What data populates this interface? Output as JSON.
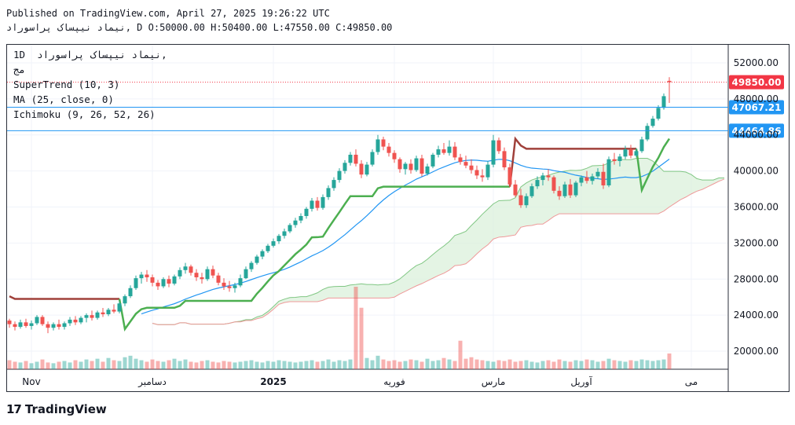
{
  "header": {
    "published": "Published on TradingView.com, April 27, 2025 19:26:22 UTC",
    "symbol_line": "نیماد نیپساک پراسوراد, D",
    "ohlc": {
      "o_label": "O",
      "o": "50000.00",
      "h_label": "H",
      "h": "50400.00",
      "l_label": "L",
      "l": "47550.00",
      "c_label": "C",
      "c": "49850.00"
    }
  },
  "legend": {
    "interval_symbol": "1D  نیماد نیپساک پراسوراد,",
    "exchange": "مج",
    "supertrend": "SuperTrend (10, 3)",
    "ma": "MA (25, close, 0)",
    "ichimoku": "Ichimoku (9, 26, 52, 26)"
  },
  "footer": {
    "brand": "TradingView",
    "logo_mark": "17"
  },
  "colors": {
    "up": "#26a69a",
    "down": "#ef5350",
    "supertrend_up": "#4caf50",
    "supertrend_down": "#a0403a",
    "ma": "#2196f3",
    "cloud_fill": "#d9efd9",
    "cloud_up": "#81c784",
    "cloud_down": "#ef9a9a",
    "price_label": "#f23645",
    "level_label": "#2196f3"
  },
  "chart_data": {
    "type": "candlestick",
    "x_tick_labels": [
      "Nov",
      "دسامبر",
      "2025",
      "فوریه",
      "مارس",
      "آوریل",
      "می"
    ],
    "y_tick_labels": [
      "52000.00",
      "48000.00",
      "44000.00",
      "40000.00",
      "36000.00",
      "32000.00",
      "28000.00",
      "24000.00",
      "20000.00"
    ],
    "y_range": [
      18000,
      54000
    ],
    "price_labels": [
      {
        "value": 49850,
        "text": "49850.00",
        "kind": "last"
      },
      {
        "value": 47067.21,
        "text": "47067.21",
        "kind": "level"
      },
      {
        "value": 44464.86,
        "text": "44464.86",
        "kind": "level"
      }
    ],
    "candles": [
      [
        23400,
        23600,
        22600,
        23000
      ],
      [
        23000,
        23300,
        22300,
        22700
      ],
      [
        22700,
        23500,
        22500,
        23200
      ],
      [
        23200,
        23600,
        22600,
        22800
      ],
      [
        22800,
        23400,
        22400,
        23100
      ],
      [
        23100,
        24000,
        22900,
        23800
      ],
      [
        23800,
        24000,
        22800,
        23000
      ],
      [
        23000,
        23300,
        22000,
        22600
      ],
      [
        22600,
        23200,
        22300,
        23000
      ],
      [
        23000,
        23500,
        22400,
        22700
      ],
      [
        22700,
        23300,
        22400,
        23100
      ],
      [
        23100,
        23800,
        22800,
        23500
      ],
      [
        23500,
        23900,
        22900,
        23200
      ],
      [
        23200,
        23900,
        23000,
        23700
      ],
      [
        23700,
        24200,
        23200,
        24000
      ],
      [
        24000,
        24500,
        23400,
        23700
      ],
      [
        23700,
        24500,
        23500,
        24300
      ],
      [
        24300,
        24800,
        23800,
        24100
      ],
      [
        24100,
        24800,
        23900,
        24600
      ],
      [
        24600,
        25200,
        24200,
        24400
      ],
      [
        24400,
        25500,
        24200,
        25300
      ],
      [
        25300,
        26300,
        25000,
        26100
      ],
      [
        26100,
        27300,
        25900,
        27000
      ],
      [
        27000,
        28400,
        26800,
        28100
      ],
      [
        28100,
        28800,
        27500,
        28500
      ],
      [
        28500,
        29000,
        27700,
        28200
      ],
      [
        28200,
        28500,
        27200,
        27600
      ],
      [
        27600,
        27900,
        26800,
        27200
      ],
      [
        27200,
        28200,
        27000,
        28000
      ],
      [
        28000,
        28400,
        27100,
        27500
      ],
      [
        27500,
        28500,
        27300,
        28300
      ],
      [
        28300,
        29300,
        28000,
        29000
      ],
      [
        29000,
        29800,
        28600,
        29400
      ],
      [
        29400,
        29600,
        28400,
        28700
      ],
      [
        28700,
        29100,
        27800,
        28200
      ],
      [
        28200,
        28700,
        27500,
        28000
      ],
      [
        28000,
        29400,
        27800,
        29100
      ],
      [
        29100,
        29500,
        28100,
        28400
      ],
      [
        28400,
        28700,
        27300,
        27600
      ],
      [
        27600,
        28100,
        26800,
        27200
      ],
      [
        27200,
        27800,
        26600,
        27000
      ],
      [
        27000,
        27600,
        26500,
        27300
      ],
      [
        27300,
        28500,
        27100,
        28100
      ],
      [
        28100,
        29400,
        28000,
        29100
      ],
      [
        29100,
        30000,
        28800,
        29800
      ],
      [
        29800,
        30700,
        29600,
        30500
      ],
      [
        30500,
        31300,
        30200,
        31100
      ],
      [
        31100,
        31900,
        30900,
        31700
      ],
      [
        31700,
        32500,
        31500,
        32200
      ],
      [
        32200,
        33000,
        31900,
        32800
      ],
      [
        32800,
        33600,
        32500,
        33300
      ],
      [
        33300,
        34200,
        33100,
        34000
      ],
      [
        34000,
        34800,
        33700,
        34500
      ],
      [
        34500,
        35300,
        34200,
        35000
      ],
      [
        35000,
        36000,
        34700,
        35800
      ],
      [
        35800,
        37000,
        35500,
        36700
      ],
      [
        36700,
        37100,
        35600,
        35900
      ],
      [
        35900,
        37400,
        35700,
        37100
      ],
      [
        37100,
        38400,
        36800,
        38100
      ],
      [
        38100,
        39300,
        37800,
        39000
      ],
      [
        39000,
        40300,
        38700,
        40000
      ],
      [
        40000,
        41200,
        39700,
        40900
      ],
      [
        40900,
        42100,
        40600,
        41800
      ],
      [
        41800,
        42400,
        40500,
        40800
      ],
      [
        40800,
        41200,
        39200,
        39600
      ],
      [
        39600,
        41000,
        39400,
        40700
      ],
      [
        40700,
        42400,
        40500,
        42100
      ],
      [
        42100,
        44000,
        41800,
        43500
      ],
      [
        43500,
        43800,
        42300,
        42700
      ],
      [
        42700,
        43100,
        41600,
        42000
      ],
      [
        42000,
        42300,
        40900,
        41300
      ],
      [
        41300,
        41500,
        39800,
        40200
      ],
      [
        40200,
        41000,
        39600,
        40800
      ],
      [
        40800,
        41300,
        39700,
        40100
      ],
      [
        40100,
        41700,
        39900,
        41400
      ],
      [
        41400,
        41800,
        39400,
        39700
      ],
      [
        39700,
        40800,
        39500,
        40500
      ],
      [
        40500,
        42000,
        40300,
        41800
      ],
      [
        41800,
        42800,
        41500,
        42400
      ],
      [
        42400,
        43100,
        41800,
        42000
      ],
      [
        42000,
        43400,
        41700,
        42700
      ],
      [
        42700,
        43200,
        41200,
        41500
      ],
      [
        41500,
        41900,
        40700,
        41000
      ],
      [
        41000,
        41700,
        40300,
        40600
      ],
      [
        40600,
        41300,
        39700,
        40100
      ],
      [
        40100,
        40600,
        39100,
        39500
      ],
      [
        39500,
        40200,
        38800,
        39300
      ],
      [
        39300,
        41100,
        39000,
        40700
      ],
      [
        40700,
        44000,
        40400,
        43400
      ],
      [
        43400,
        43700,
        41900,
        42200
      ],
      [
        42200,
        42600,
        40100,
        40400
      ],
      [
        40400,
        40800,
        38200,
        38500
      ],
      [
        38500,
        39000,
        37100,
        37300
      ],
      [
        37300,
        38000,
        35900,
        36200
      ],
      [
        36200,
        37500,
        35900,
        37200
      ],
      [
        37200,
        38600,
        37000,
        38300
      ],
      [
        38300,
        39400,
        38000,
        39000
      ],
      [
        39000,
        39800,
        38400,
        39500
      ],
      [
        39500,
        40200,
        38900,
        39300
      ],
      [
        39300,
        39500,
        37500,
        37800
      ],
      [
        37800,
        38300,
        36800,
        37200
      ],
      [
        37200,
        38800,
        37000,
        38500
      ],
      [
        38500,
        39100,
        37000,
        37300
      ],
      [
        37300,
        38900,
        37100,
        38700
      ],
      [
        38700,
        39500,
        38300,
        39300
      ],
      [
        39300,
        40000,
        38600,
        38900
      ],
      [
        38900,
        39700,
        38500,
        39400
      ],
      [
        39400,
        40300,
        39100,
        39900
      ],
      [
        39900,
        40800,
        38000,
        38400
      ],
      [
        38400,
        41600,
        38200,
        41300
      ],
      [
        41300,
        42000,
        40700,
        41100
      ],
      [
        41100,
        41900,
        40500,
        41600
      ],
      [
        41600,
        42800,
        41300,
        42400
      ],
      [
        42400,
        42900,
        41400,
        41700
      ],
      [
        41700,
        42500,
        41500,
        42200
      ],
      [
        42200,
        43800,
        42000,
        43500
      ],
      [
        43500,
        45300,
        43300,
        45000
      ],
      [
        45000,
        46100,
        44800,
        45800
      ],
      [
        45800,
        47300,
        45600,
        47000
      ],
      [
        47000,
        48600,
        46800,
        48300
      ],
      [
        50000,
        50400,
        47550,
        49850
      ]
    ],
    "volume": [
      1.2,
      1.0,
      0.9,
      1.1,
      0.8,
      1.0,
      1.3,
      0.9,
      0.8,
      1.0,
      1.1,
      0.9,
      1.2,
      1.0,
      1.3,
      1.1,
      1.4,
      1.0,
      1.5,
      1.2,
      1.1,
      1.6,
      1.8,
      1.4,
      1.2,
      1.0,
      1.3,
      1.1,
      1.0,
      1.2,
      1.4,
      1.1,
      1.3,
      1.0,
      0.9,
      1.1,
      1.2,
      1.0,
      0.9,
      1.1,
      1.0,
      0.9,
      1.0,
      1.1,
      1.2,
      1.0,
      0.9,
      1.1,
      1.0,
      1.2,
      1.1,
      1.0,
      0.9,
      1.0,
      1.1,
      1.2,
      1.0,
      1.1,
      1.3,
      1.0,
      1.2,
      1.1,
      1.3,
      11.0,
      8.2,
      1.5,
      1.2,
      1.8,
      1.3,
      1.1,
      1.2,
      1.0,
      1.1,
      1.3,
      1.2,
      1.0,
      1.4,
      1.1,
      1.2,
      1.5,
      1.3,
      1.1,
      3.8,
      1.4,
      1.6,
      1.3,
      1.2,
      1.1,
      1.0,
      1.2,
      1.1,
      1.3,
      1.0,
      1.1,
      1.2,
      1.0,
      0.9,
      1.1,
      1.2,
      1.0,
      1.3,
      1.1,
      1.0,
      1.2,
      1.1,
      1.3,
      1.2,
      1.0,
      1.1,
      1.4,
      1.2,
      1.1,
      1.0,
      1.2,
      1.1,
      1.3,
      1.2,
      1.1,
      1.2,
      1.3,
      2.1
    ]
  }
}
